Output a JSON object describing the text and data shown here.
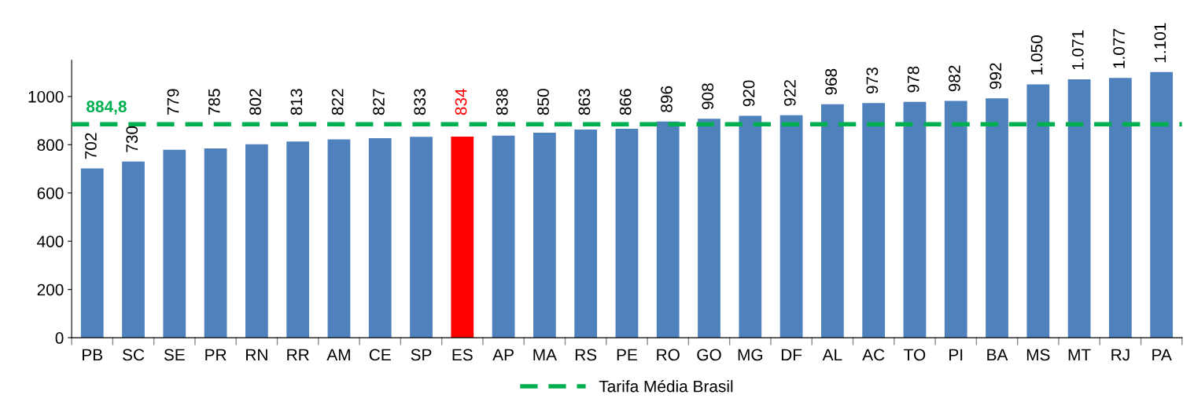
{
  "chart_data": {
    "type": "bar",
    "categories": [
      "PB",
      "SC",
      "SE",
      "PR",
      "RN",
      "RR",
      "AM",
      "CE",
      "SP",
      "ES",
      "AP",
      "MA",
      "RS",
      "PE",
      "RO",
      "GO",
      "MG",
      "DF",
      "AL",
      "AC",
      "TO",
      "PI",
      "BA",
      "MS",
      "MT",
      "RJ",
      "PA"
    ],
    "values": [
      702,
      730,
      779,
      785,
      802,
      813,
      822,
      827,
      833,
      834,
      838,
      850,
      863,
      866,
      896,
      908,
      920,
      922,
      968,
      973,
      978,
      982,
      992,
      1050,
      1071,
      1077,
      1101
    ],
    "colors": [
      "#4f81bd",
      "#4f81bd",
      "#4f81bd",
      "#4f81bd",
      "#4f81bd",
      "#4f81bd",
      "#4f81bd",
      "#4f81bd",
      "#4f81bd",
      "#ff0000",
      "#4f81bd",
      "#4f81bd",
      "#4f81bd",
      "#4f81bd",
      "#4f81bd",
      "#4f81bd",
      "#4f81bd",
      "#4f81bd",
      "#4f81bd",
      "#4f81bd",
      "#4f81bd",
      "#4f81bd",
      "#4f81bd",
      "#4f81bd",
      "#4f81bd",
      "#4f81bd",
      "#4f81bd"
    ],
    "value_labels": [
      "702",
      "730",
      "779",
      "785",
      "802",
      "813",
      "822",
      "827",
      "833",
      "834",
      "838",
      "850",
      "863",
      "866",
      "896",
      "908",
      "920",
      "922",
      "968",
      "973",
      "978",
      "982",
      "992",
      "1.050",
      "1.071",
      "1.077",
      "1.101"
    ],
    "ylim": [
      0,
      1150
    ],
    "yticks": [
      0,
      200,
      400,
      600,
      800,
      1000
    ],
    "grid": false,
    "legend": "bottom",
    "ref_lines": [
      {
        "axis": "y",
        "value": 884.8,
        "label": "Tarifa Média Brasil",
        "color": "#00b050",
        "line_style": "dashed"
      }
    ],
    "annotations": [
      {
        "text": "884,8",
        "x": "PB",
        "y": 884.8
      }
    ]
  }
}
